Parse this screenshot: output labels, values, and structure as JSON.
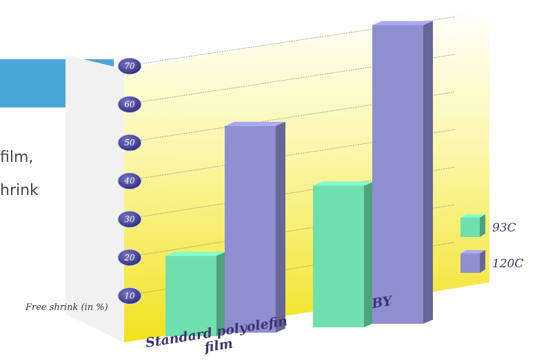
{
  "page": {
    "fragment_lines": [
      "film,",
      "hrink"
    ]
  },
  "colors": {
    "banner": "#4aa6d6",
    "series_93": "#6fe0ad",
    "series_120": "#8f8fd0",
    "wall_top": "#ffffff",
    "wall_bottom": "#f2e11e"
  },
  "chart_data": {
    "type": "bar",
    "three_d": true,
    "title": "",
    "xlabel": "",
    "ylabel": "Free shrink (in %)",
    "ylim": [
      0,
      75
    ],
    "yticks": [
      10,
      20,
      30,
      40,
      50,
      60,
      70
    ],
    "grid": true,
    "legend_position": "right",
    "categories": [
      [
        "Standard polyolefin",
        "film"
      ],
      [
        "BY"
      ]
    ],
    "series": [
      {
        "name": "93C",
        "values": [
          21,
          37
        ],
        "color": "#6fe0ad"
      },
      {
        "name": "120C",
        "values": [
          54,
          78
        ],
        "color": "#8f8fd0"
      }
    ]
  }
}
